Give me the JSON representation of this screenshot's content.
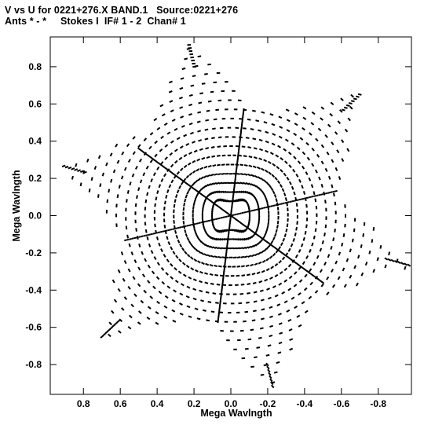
{
  "header": {
    "line1": "V vs U for 0221+276.X BAND.1   Source:0221+276",
    "line2": "Ants * - *     Stokes I  IF# 1 - 2  Chan# 1"
  },
  "chart_data": {
    "type": "scatter",
    "title": "V vs U for 0221+276.X BAND.1   Source:0221+276",
    "subtitle": "Ants * - *     Stokes I  IF# 1 - 2  Chan# 1",
    "xlabel": "Mega Wavlngth",
    "ylabel": "Mega Wavlngth",
    "xlim": [
      0.98,
      -0.98
    ],
    "ylim": [
      -0.96,
      0.96
    ],
    "x_reversed": true,
    "xticks": [
      0.8,
      0.6,
      0.4,
      0.2,
      0.0,
      -0.2,
      -0.4,
      -0.6,
      -0.8
    ],
    "xtick_labels": [
      "0.8",
      "0.6",
      "0.4",
      "0.2",
      "0.0",
      "-0.2",
      "-0.4",
      "-0.6",
      "-0.8"
    ],
    "yticks": [
      0.8,
      0.6,
      0.4,
      0.2,
      0.0,
      -0.2,
      -0.4,
      -0.6,
      -0.8
    ],
    "ytick_labels": [
      "0.8",
      "0.6",
      "0.4",
      "0.2",
      "0.0",
      "-0.2",
      "-0.4",
      "-0.6",
      "-0.8"
    ],
    "point_color": "#000000",
    "pattern": "six-pointed star uv-coverage",
    "star_points": [
      {
        "u": 0.23,
        "v": 0.93
      },
      {
        "u": -0.71,
        "v": 0.66
      },
      {
        "u": -0.98,
        "v": -0.27
      },
      {
        "u": -0.23,
        "v": -0.93
      },
      {
        "u": 0.71,
        "v": -0.66
      },
      {
        "u": 0.92,
        "v": 0.27
      }
    ],
    "star_notches": [
      {
        "u": -0.15,
        "v": 0.55
      },
      {
        "u": -0.58,
        "v": 0.12
      },
      {
        "u": -0.45,
        "v": -0.45
      },
      {
        "u": 0.15,
        "v": -0.55
      },
      {
        "u": 0.58,
        "v": -0.12
      },
      {
        "u": 0.45,
        "v": 0.45
      }
    ],
    "dense_baselines": [
      {
        "u": 0.5,
        "v": 0.36
      },
      {
        "u": 0.78,
        "v": -0.18
      },
      {
        "u": -0.07,
        "v": 0.57
      }
    ]
  }
}
